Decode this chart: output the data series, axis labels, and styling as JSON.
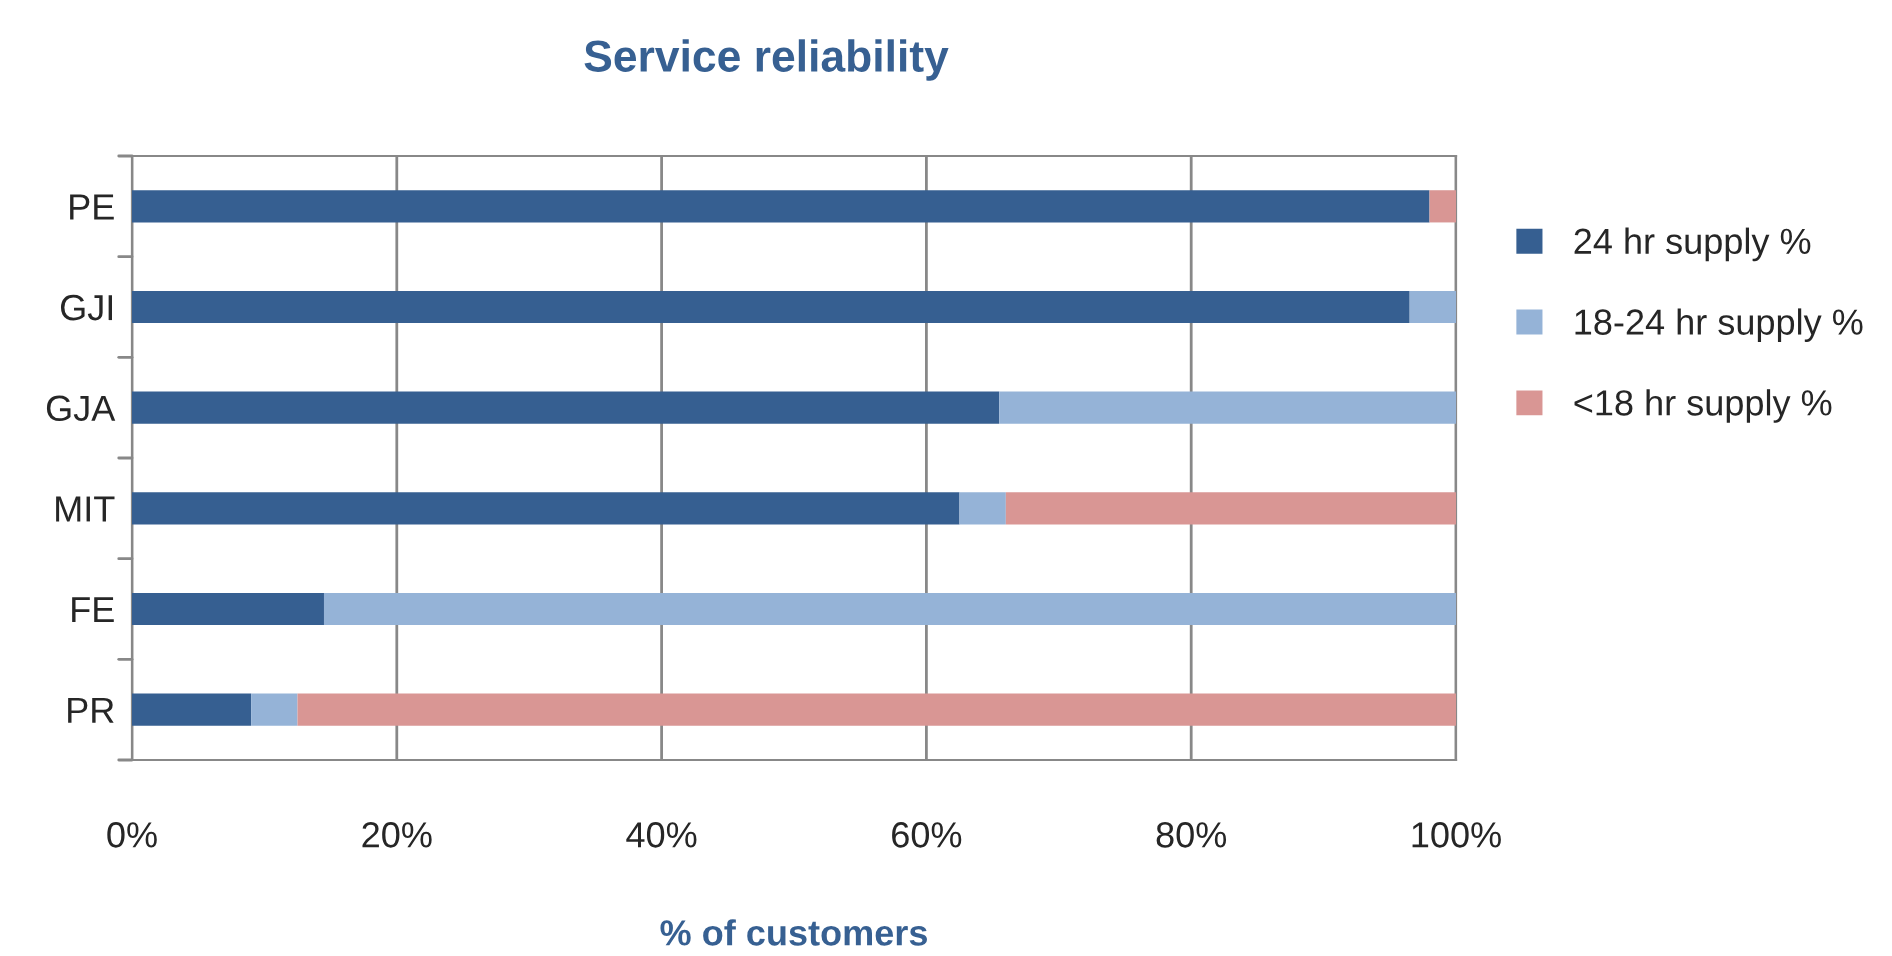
{
  "chart_data": {
    "type": "bar",
    "orientation": "horizontal",
    "stacked": true,
    "title": "Service reliability",
    "xlabel": "% of customers",
    "categories": [
      "PE",
      "GJI",
      "GJA",
      "MIT",
      "FE",
      "PR"
    ],
    "series": [
      {
        "name": "24 hr supply %",
        "color": "#365f91",
        "values": [
          98,
          96.5,
          65.5,
          62.5,
          14.5,
          9
        ]
      },
      {
        "name": "18-24 hr supply %",
        "color": "#95b3d7",
        "values": [
          0,
          3.5,
          34.5,
          3.5,
          85.5,
          3.5
        ]
      },
      {
        "name": "<18 hr supply %",
        "color": "#d99694",
        "values": [
          2,
          0,
          0,
          34,
          0,
          87.5
        ]
      }
    ],
    "xlim": [
      0,
      100
    ],
    "xticks": [
      {
        "value": 0,
        "label": "0%"
      },
      {
        "value": 20,
        "label": "20%"
      },
      {
        "value": 40,
        "label": "40%"
      },
      {
        "value": 60,
        "label": "60%"
      },
      {
        "value": 80,
        "label": "80%"
      },
      {
        "value": 100,
        "label": "100%"
      }
    ],
    "grid": "x",
    "legend": "right"
  }
}
